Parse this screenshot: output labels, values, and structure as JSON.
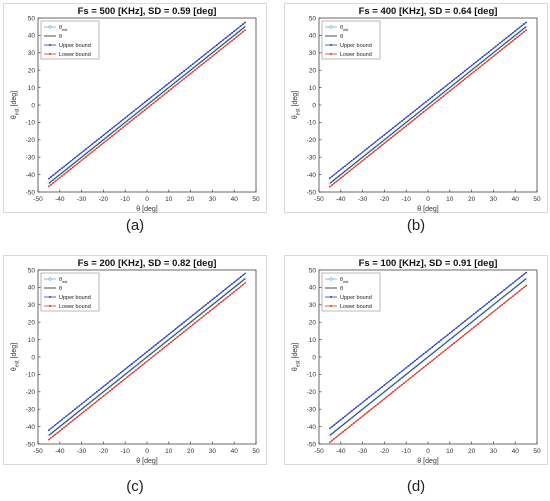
{
  "chart_data": [
    {
      "type": "line",
      "caption": "(a)",
      "title": "Fs = 500 [KHz], SD =  0.59 [deg]",
      "xlabel": "θ [deg]",
      "ylabel": "θ",
      "ylabel_sub": "est",
      "ylabel_unit": "[deg]",
      "xlim": [
        -50,
        50
      ],
      "ylim": [
        -50,
        50
      ],
      "xticks": [
        "-50",
        "-40",
        "-30",
        "-20",
        "-10",
        "0",
        "10",
        "20",
        "30",
        "40",
        "50"
      ],
      "yticks": [
        "-50",
        "-40",
        "-30",
        "-20",
        "-10",
        "0",
        "10",
        "20",
        "30",
        "40",
        "50"
      ],
      "legend_position": "top-left",
      "series": [
        {
          "name": "θ",
          "name_sub": "est",
          "color": "#5ab4e0",
          "marker": "diamond",
          "x": [
            -45,
            45
          ],
          "y": [
            -45,
            45
          ]
        },
        {
          "name": "θ",
          "color": "#222222",
          "marker": "none",
          "x": [
            -45,
            45
          ],
          "y": [
            -45,
            45
          ]
        },
        {
          "name": "Upper bound",
          "color": "#2b3ed6",
          "marker": "dot",
          "x": [
            -45,
            45
          ],
          "y": [
            -42.3,
            47.4
          ]
        },
        {
          "name": "Lower bound",
          "color": "#e0342a",
          "marker": "dot",
          "x": [
            -45,
            45
          ],
          "y": [
            -46.8,
            43.0
          ]
        }
      ]
    },
    {
      "type": "line",
      "caption": "(b)",
      "title": "Fs = 400 [KHz], SD = 0.64 [deg]",
      "xlabel": "θ [deg]",
      "ylabel": "θ",
      "ylabel_sub": "est",
      "ylabel_unit": "[deg]",
      "xlim": [
        -50,
        50
      ],
      "ylim": [
        -50,
        50
      ],
      "xticks": [
        "-50",
        "-40",
        "-30",
        "-20",
        "-10",
        "0",
        "10",
        "20",
        "30",
        "40",
        "50"
      ],
      "yticks": [
        "-50",
        "-40",
        "-30",
        "-20",
        "-10",
        "0",
        "10",
        "20",
        "30",
        "40",
        "50"
      ],
      "legend_position": "top-left",
      "series": [
        {
          "name": "θ",
          "name_sub": "est",
          "color": "#5ab4e0",
          "marker": "diamond",
          "x": [
            -45,
            45
          ],
          "y": [
            -45,
            45
          ]
        },
        {
          "name": "θ",
          "color": "#222222",
          "marker": "none",
          "x": [
            -45,
            45
          ],
          "y": [
            -45,
            45
          ]
        },
        {
          "name": "Upper bound",
          "color": "#2b3ed6",
          "marker": "dot",
          "x": [
            -45,
            45
          ],
          "y": [
            -42.0,
            47.5
          ]
        },
        {
          "name": "Lower bound",
          "color": "#e0342a",
          "marker": "dot",
          "x": [
            -45,
            45
          ],
          "y": [
            -47.0,
            43.0
          ]
        }
      ]
    },
    {
      "type": "line",
      "caption": "(c)",
      "title": "Fs = 200 [KHz], SD = 0.82 [deg]",
      "xlabel": "θ [deg]",
      "ylabel": "θ",
      "ylabel_sub": "est",
      "ylabel_unit": "[deg]",
      "xlim": [
        -50,
        50
      ],
      "ylim": [
        -50,
        50
      ],
      "xticks": [
        "-50",
        "-40",
        "-30",
        "-20",
        "-10",
        "0",
        "10",
        "20",
        "30",
        "40",
        "50"
      ],
      "yticks": [
        "-50",
        "-40",
        "-30",
        "-20",
        "-10",
        "0",
        "10",
        "20",
        "30",
        "40",
        "50"
      ],
      "legend_position": "top-left",
      "series": [
        {
          "name": "θ",
          "name_sub": "est",
          "color": "#5ab4e0",
          "marker": "diamond",
          "x": [
            -45,
            45
          ],
          "y": [
            -45,
            45
          ]
        },
        {
          "name": "θ",
          "color": "#222222",
          "marker": "none",
          "x": [
            -45,
            45
          ],
          "y": [
            -45,
            45
          ]
        },
        {
          "name": "Upper bound",
          "color": "#2b3ed6",
          "marker": "dot",
          "x": [
            -45,
            45
          ],
          "y": [
            -42.0,
            48.0
          ]
        },
        {
          "name": "Lower bound",
          "color": "#e0342a",
          "marker": "dot",
          "x": [
            -45,
            45
          ],
          "y": [
            -47.5,
            42.5
          ]
        }
      ]
    },
    {
      "type": "line",
      "caption": "(d)",
      "title": "Fs = 100 [KHz], SD = 0.91 [deg]",
      "xlabel": "θ [deg]",
      "ylabel": "θ",
      "ylabel_sub": "est",
      "ylabel_unit": "[deg]",
      "xlim": [
        -50,
        50
      ],
      "ylim": [
        -50,
        50
      ],
      "xticks": [
        "-50",
        "-40",
        "-30",
        "-20",
        "-10",
        "0",
        "10",
        "20",
        "30",
        "40",
        "50"
      ],
      "yticks": [
        "-50",
        "-40",
        "-30",
        "-20",
        "-10",
        "0",
        "10",
        "20",
        "30",
        "40",
        "50"
      ],
      "legend_position": "top-left",
      "series": [
        {
          "name": "θ",
          "name_sub": "est",
          "color": "#5ab4e0",
          "marker": "diamond",
          "x": [
            -45,
            45
          ],
          "y": [
            -45,
            45
          ]
        },
        {
          "name": "θ",
          "color": "#222222",
          "marker": "none",
          "x": [
            -45,
            45
          ],
          "y": [
            -45,
            45
          ]
        },
        {
          "name": "Upper bound",
          "color": "#2b3ed6",
          "marker": "dot",
          "x": [
            -45,
            45
          ],
          "y": [
            -41.0,
            48.5
          ]
        },
        {
          "name": "Lower bound",
          "color": "#e0342a",
          "marker": "dot",
          "x": [
            -45,
            45
          ],
          "y": [
            -49.0,
            41.0
          ]
        }
      ]
    }
  ]
}
